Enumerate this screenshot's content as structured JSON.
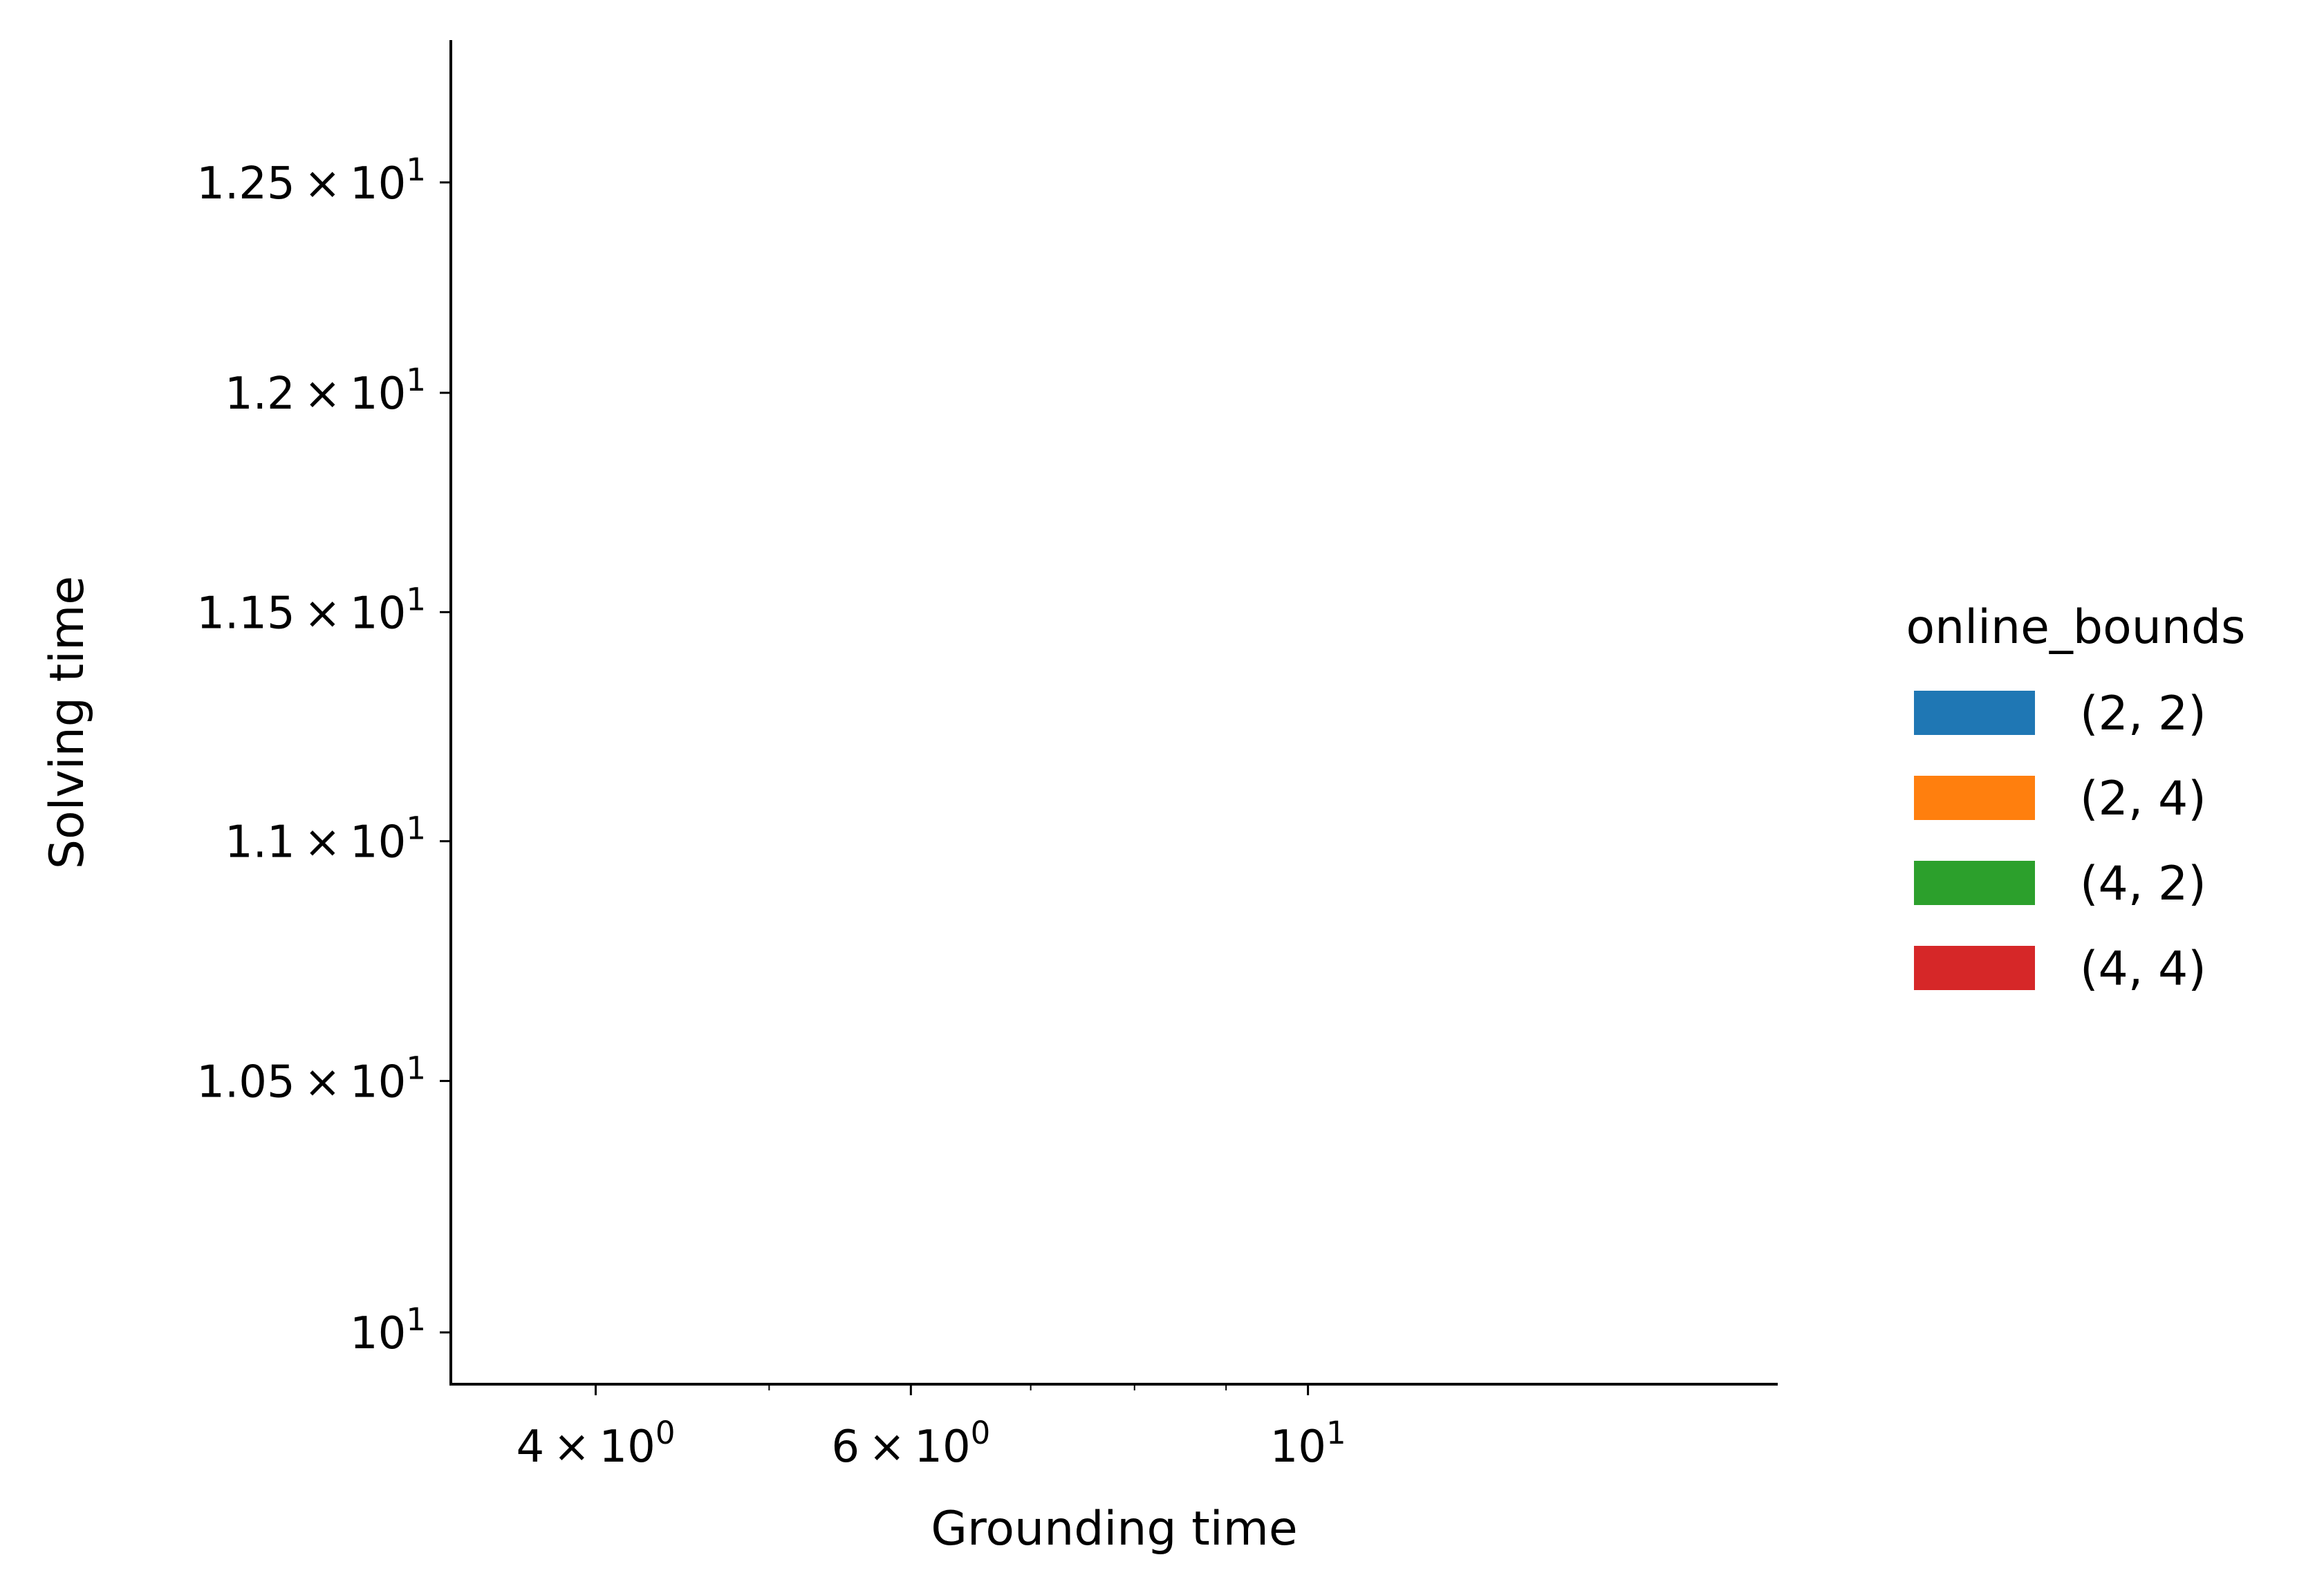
{
  "chart_data": {
    "type": "scatter",
    "xlabel": "Grounding time",
    "ylabel": "Solving time",
    "x_scale": "log",
    "y_scale": "log",
    "xlim": [
      3.32,
      18.3
    ],
    "ylim": [
      9.9,
      12.85
    ],
    "x_ticks": [
      {
        "value": 4,
        "mantissa": "4",
        "exponent": "0"
      },
      {
        "value": 6,
        "mantissa": "6",
        "exponent": "0"
      },
      {
        "value": 10,
        "mantissa": "",
        "exponent": "1"
      }
    ],
    "x_minor_ticks": [
      5,
      7,
      8,
      9
    ],
    "y_ticks": [
      {
        "value": 10,
        "mantissa": "",
        "exponent": "1"
      },
      {
        "value": 10.5,
        "mantissa": "1.05",
        "exponent": "1"
      },
      {
        "value": 11,
        "mantissa": "1.1",
        "exponent": "1"
      },
      {
        "value": 11.5,
        "mantissa": "1.15",
        "exponent": "1"
      },
      {
        "value": 12,
        "mantissa": "1.2",
        "exponent": "1"
      },
      {
        "value": 12.5,
        "mantissa": "1.25",
        "exponent": "1"
      }
    ],
    "grid": false,
    "legend": {
      "title": "online_bounds",
      "placement": "right, outside plot",
      "entries": [
        {
          "label": "(2, 2)",
          "color": "#1f77b4"
        },
        {
          "label": "(2, 4)",
          "color": "#ff7f0e"
        },
        {
          "label": "(4, 2)",
          "color": "#2ca02c"
        },
        {
          "label": "(4, 4)",
          "color": "#d62728"
        }
      ]
    },
    "series": [
      {
        "name": "(2, 2)",
        "points": []
      },
      {
        "name": "(2, 4)",
        "points": []
      },
      {
        "name": "(4, 2)",
        "points": []
      },
      {
        "name": "(4, 4)",
        "points": []
      }
    ]
  }
}
